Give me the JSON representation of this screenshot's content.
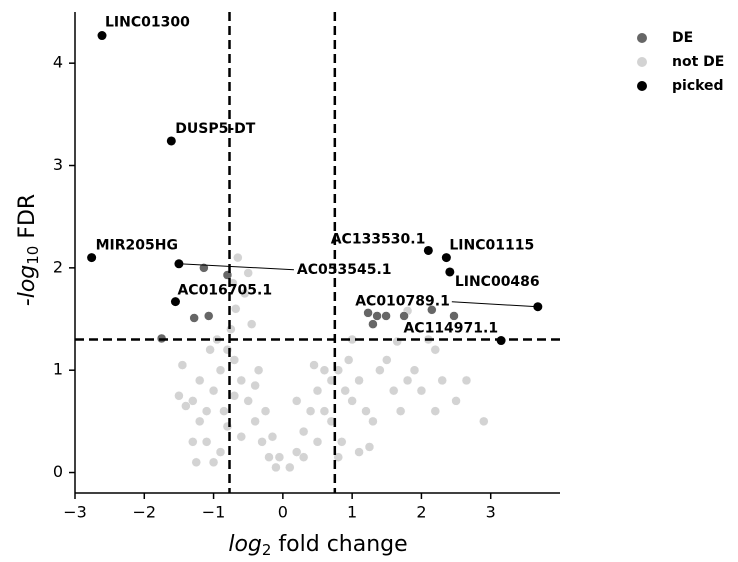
{
  "chart_data": {
    "type": "scatter",
    "x_label": [
      "log",
      "2",
      " fold change"
    ],
    "y_label": [
      "-log",
      "10",
      " FDR"
    ],
    "xlim": [
      -3,
      4
    ],
    "ylim": [
      -0.2,
      4.5
    ],
    "xticks": [
      {
        "value": -3,
        "label": "−3"
      },
      {
        "value": -2,
        "label": "−2"
      },
      {
        "value": -1,
        "label": "−1"
      },
      0,
      1,
      2,
      3
    ],
    "yticks": [
      0,
      1,
      2,
      3,
      4
    ],
    "thresholds": {
      "x": [
        -0.77,
        0.75
      ],
      "y": 1.3
    },
    "legend": "upper right outside",
    "series": [
      {
        "name": "not DE",
        "color": "#d3d3d3",
        "x": [
          -0.1,
          -0.2,
          -0.3,
          -0.4,
          -0.5,
          -0.6,
          -0.7,
          -0.75,
          -0.68,
          -0.72,
          -0.65,
          -0.8,
          -0.9,
          -1.0,
          -1.1,
          -1.2,
          -1.3,
          -1.1,
          -0.9,
          -1.2,
          -1.4,
          -1.5,
          -1.45,
          -1.05,
          -0.95,
          -0.55,
          -0.5,
          -0.45,
          -0.35,
          -0.25,
          -0.15,
          -0.05,
          -1.0,
          -0.8,
          -0.6,
          -0.4,
          -1.3,
          -1.25,
          -0.85,
          -0.7,
          0.1,
          0.2,
          0.3,
          0.4,
          0.5,
          0.6,
          0.7,
          0.8,
          0.9,
          1.0,
          1.1,
          1.2,
          1.3,
          1.4,
          1.5,
          1.6,
          1.7,
          1.8,
          1.9,
          2.0,
          2.2,
          2.3,
          2.5,
          2.65,
          2.9,
          2.2,
          1.0,
          0.95,
          0.3,
          0.5,
          0.7,
          0.85,
          1.1,
          0.45,
          0.2,
          1.65,
          1.8,
          2.1,
          0.8,
          1.25,
          0.6
        ],
        "values": [
          0.05,
          0.15,
          0.3,
          0.5,
          0.7,
          0.9,
          1.1,
          1.4,
          1.6,
          1.85,
          2.1,
          1.2,
          1.0,
          0.8,
          0.6,
          0.5,
          0.7,
          0.3,
          0.2,
          0.9,
          0.65,
          0.75,
          1.05,
          1.2,
          1.3,
          1.75,
          1.95,
          1.45,
          1.0,
          0.6,
          0.35,
          0.15,
          0.1,
          0.45,
          0.35,
          0.85,
          0.3,
          0.1,
          0.6,
          0.75,
          0.05,
          0.2,
          0.4,
          0.6,
          0.8,
          1.0,
          0.9,
          1.0,
          0.8,
          0.7,
          0.9,
          0.6,
          0.5,
          1.0,
          1.1,
          0.8,
          0.6,
          0.9,
          1.0,
          0.8,
          0.6,
          0.9,
          0.7,
          0.9,
          0.5,
          1.2,
          1.3,
          1.1,
          0.15,
          0.3,
          0.5,
          0.3,
          0.2,
          1.05,
          0.7,
          1.28,
          1.58,
          1.3,
          0.15,
          0.25,
          0.6
        ]
      },
      {
        "name": "DE",
        "color": "#666666",
        "x": [
          -1.14,
          -0.8,
          -1.07,
          -1.28,
          -1.75,
          1.23,
          1.36,
          1.49,
          1.3,
          1.75,
          2.47,
          2.15
        ],
        "values": [
          2.0,
          1.93,
          1.53,
          1.51,
          1.31,
          1.56,
          1.53,
          1.53,
          1.45,
          1.53,
          1.53,
          1.59
        ]
      },
      {
        "name": "picked",
        "color": "#000000",
        "labels": [
          "LINC01300",
          "DUSP5-DT",
          "MIR205HG",
          "AC053545.1",
          "AC016705.1",
          "AC133530.1",
          "LINC01115",
          "LINC00486",
          "AC010789.1",
          "AC114971.1"
        ],
        "x": [
          -2.61,
          -1.61,
          -2.76,
          -1.5,
          -1.55,
          2.1,
          2.36,
          2.41,
          3.68,
          3.15
        ],
        "values": [
          4.27,
          3.24,
          2.1,
          2.04,
          1.67,
          2.17,
          2.1,
          1.96,
          1.62,
          1.29
        ]
      }
    ]
  }
}
